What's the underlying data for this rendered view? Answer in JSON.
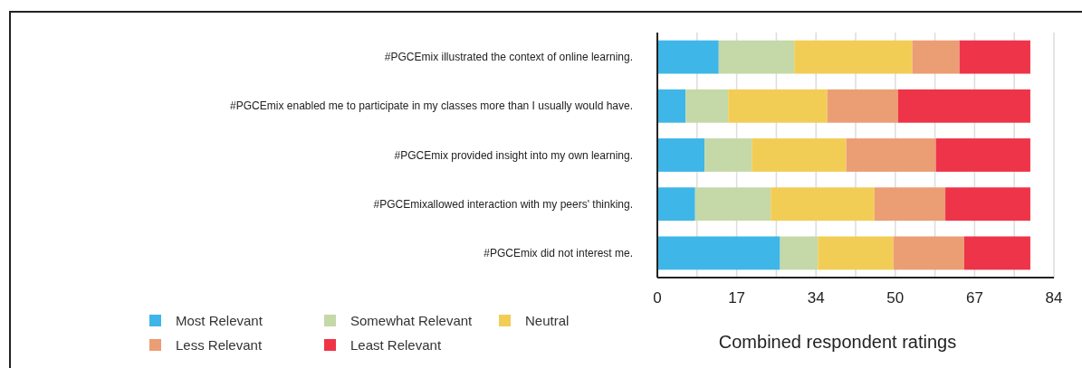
{
  "chart_data": {
    "type": "bar",
    "orientation": "horizontal",
    "stacked": true,
    "xlabel": "Combined respondent ratings",
    "categories": [
      "#PGCEmix illustrated the context of online learning.",
      "#PGCEmix enabled me to participate in my classes more than I usually would have.",
      "#PGCEmix provided insight into my own learning.",
      "#PGCEmixallowed interaction with my peers' thinking.",
      "#PGCEmix did not interest me."
    ],
    "series": [
      {
        "name": "Most Relevant",
        "color": "#3fb6e8",
        "values": [
          13,
          6,
          10,
          8,
          26
        ]
      },
      {
        "name": "Somewhat Relevant",
        "color": "#c4d9a7",
        "values": [
          16,
          9,
          10,
          16,
          8
        ]
      },
      {
        "name": "Neutral",
        "color": "#f2cd56",
        "values": [
          25,
          21,
          20,
          22,
          16
        ]
      },
      {
        "name": "Less Relevant",
        "color": "#eb9d74",
        "values": [
          10,
          15,
          19,
          15,
          15
        ]
      },
      {
        "name": "Least Relevant",
        "color": "#ee3448",
        "values": [
          15,
          28,
          20,
          18,
          14
        ]
      }
    ],
    "xlim": [
      0,
      84
    ],
    "xticks": [
      0,
      {
        "value": 8.4,
        "label": null
      },
      {
        "value": 16.8,
        "label": "17"
      },
      {
        "value": 25.2,
        "label": null
      },
      {
        "value": 33.6,
        "label": "34"
      },
      {
        "value": 42,
        "label": null
      },
      {
        "value": 50.4,
        "label": "50"
      },
      {
        "value": 58.8,
        "label": null
      },
      {
        "value": 67.2,
        "label": "67"
      },
      {
        "value": 75.6,
        "label": null
      },
      84
    ],
    "grid": "x",
    "legend": "bottom"
  }
}
